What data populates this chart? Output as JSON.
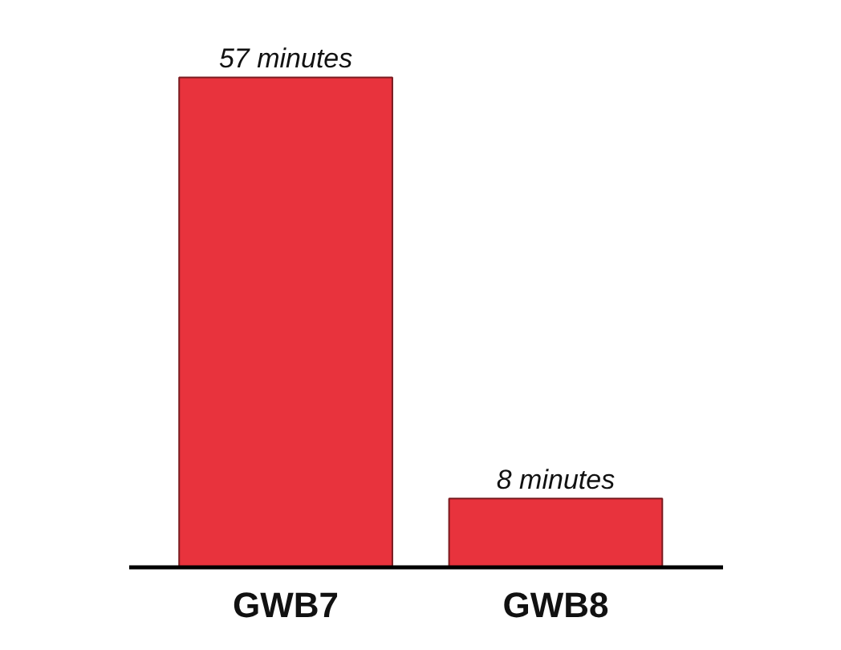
{
  "chart_data": {
    "type": "bar",
    "categories": [
      "GWB7",
      "GWB8"
    ],
    "values": [
      57,
      8
    ],
    "value_labels": [
      "57 minutes",
      "8 minutes"
    ],
    "color": "#e8333d"
  }
}
